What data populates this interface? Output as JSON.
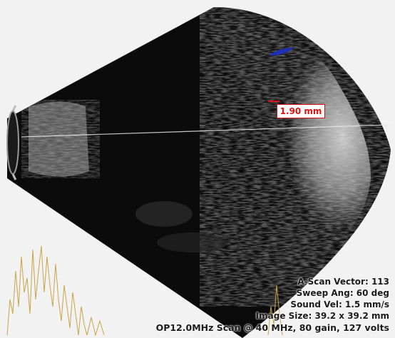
{
  "measurement": {
    "label": "1.90 mm"
  },
  "info": {
    "vector": "A-Scan Vector: 113",
    "sweep": "Sweep Ang: 60 deg",
    "sound": "Sound Vel: 1.5 mm/s",
    "size": "Image Size: 39.2 x 39.2 mm",
    "probe": "OP12.0MHz Scan @ 40 MHz, 80 gain, 127 volts"
  },
  "colors": {
    "measurement": "#dd1111",
    "marker": "#1d2fb5",
    "background": "#f2f2f2"
  }
}
